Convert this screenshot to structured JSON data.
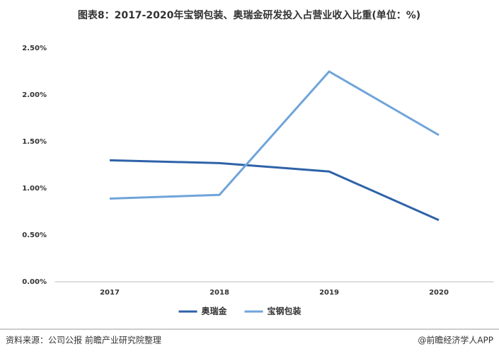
{
  "chart_data": {
    "type": "line",
    "title": "图表8：2017-2020年宝钢包装、奥瑞金研发投入占营业收入比重(单位：%)",
    "categories": [
      "2017",
      "2018",
      "2019",
      "2020"
    ],
    "series": [
      {
        "name": "奥瑞金",
        "color": "#2e62a8",
        "values": [
          1.3,
          1.27,
          1.18,
          0.66
        ]
      },
      {
        "name": "宝钢包装",
        "color": "#6fa4d9",
        "values": [
          0.89,
          0.93,
          2.25,
          1.57
        ]
      }
    ],
    "ylim": [
      0,
      2.5
    ],
    "yticks": [
      {
        "value": 0,
        "label": "0.00%"
      },
      {
        "value": 0.5,
        "label": "0.50%"
      },
      {
        "value": 1,
        "label": "1.00%"
      },
      {
        "value": 1.5,
        "label": "1.50%"
      },
      {
        "value": 2,
        "label": "2.00%"
      },
      {
        "value": 2.5,
        "label": "2.50%"
      }
    ],
    "grid": false,
    "legend": "bottom"
  },
  "source": "资料来源：公司公报 前瞻产业研究院整理",
  "credit": "@前瞻经济学人APP"
}
